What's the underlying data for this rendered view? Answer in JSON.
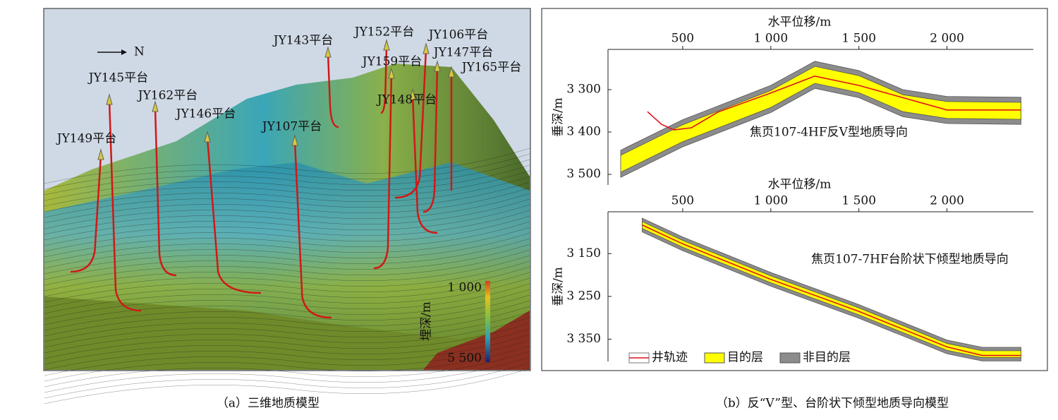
{
  "panel_a": {
    "caption": "（a）三维地质模型",
    "north": "N",
    "platforms": [
      "JY143平台",
      "JY152平台",
      "JY106平台",
      "JY147平台",
      "JY159平台",
      "JY165平台",
      "JY145平台",
      "JY162平台",
      "JY146平台",
      "JY148平台",
      "JY107平台",
      "JY149平台"
    ],
    "colorbar": {
      "label": "埋深/m",
      "ticks": [
        {
          "value": 1000,
          "label": "1 000"
        },
        {
          "value": 5500,
          "label": "5 500"
        }
      ]
    }
  },
  "panel_b": {
    "caption": "（b）反“V”型、台阶状下倾型地质导向模型"
  },
  "chart_data": [
    {
      "type": "line",
      "xlabel": "水平位移/m",
      "ylabel": "垂深/m",
      "annotation": "焦页107-4HF反V型地质导向",
      "xlim": [
        76,
        2490
      ],
      "xticks": [
        500,
        {
          "value": 1000,
          "label": "1 000"
        },
        {
          "value": 1500,
          "label": "1 500"
        },
        {
          "value": 2000,
          "label": "2 000"
        }
      ],
      "ylim": [
        3205,
        3525
      ],
      "y_inverted": true,
      "yticks": [
        {
          "value": 3300,
          "label": "3 300"
        },
        {
          "value": 3400,
          "label": "3 400"
        },
        {
          "value": 3500,
          "label": "3 500"
        }
      ],
      "bands": [
        {
          "color": "#8c8c8c",
          "x": [
            148,
            500,
            1000,
            1250,
            1500,
            1750,
            2000,
            2420
          ],
          "top": [
            3443,
            3371,
            3290,
            3233,
            3255,
            3300,
            3316,
            3318
          ],
          "bottom": [
            3507,
            3435,
            3354,
            3297,
            3319,
            3364,
            3380,
            3382
          ]
        },
        {
          "color": "#ffff00",
          "x": [
            148,
            500,
            1000,
            1250,
            1500,
            1750,
            2000,
            2420
          ],
          "top": [
            3455,
            3383,
            3302,
            3245,
            3267,
            3312,
            3328,
            3330
          ],
          "bottom": [
            3495,
            3423,
            3342,
            3285,
            3307,
            3352,
            3368,
            3370
          ]
        }
      ],
      "well": {
        "color": "#e0141e",
        "x": [
          300,
          380,
          450,
          550,
          700,
          1000,
          1250,
          1500,
          2000,
          2420
        ],
        "values": [
          3352,
          3382,
          3395,
          3390,
          3353,
          3308,
          3268,
          3290,
          3348,
          3348
        ]
      }
    },
    {
      "type": "line",
      "xlabel": "水平位移/m",
      "ylabel": "垂深/m",
      "annotation": "焦页107-7HF台阶状下倾型地质导向",
      "xlim": [
        76,
        2490
      ],
      "xticks": [
        500,
        {
          "value": 1000,
          "label": "1 000"
        },
        {
          "value": 1500,
          "label": "1 500"
        },
        {
          "value": 2000,
          "label": "2 000"
        }
      ],
      "ylim": [
        3052,
        3402
      ],
      "y_inverted": true,
      "yticks": [
        {
          "value": 3150,
          "label": "3 150"
        },
        {
          "value": 3250,
          "label": "3 250"
        },
        {
          "value": 3350,
          "label": "3 350"
        }
      ],
      "bands": [
        {
          "name": "非目的层",
          "color": "#8c8c8c",
          "x": [
            270,
            500,
            1000,
            1500,
            2000,
            2200,
            2420
          ],
          "top": [
            3067,
            3111,
            3194,
            3269,
            3352,
            3369,
            3369
          ],
          "bottom": [
            3099,
            3143,
            3226,
            3301,
            3384,
            3401,
            3401
          ]
        },
        {
          "name": "目的层",
          "color": "#ffff00",
          "x": [
            270,
            500,
            1000,
            1500,
            2000,
            2200,
            2420
          ],
          "top": [
            3075,
            3119,
            3202,
            3277,
            3360,
            3377,
            3377
          ],
          "bottom": [
            3091,
            3135,
            3218,
            3293,
            3376,
            3393,
            3393
          ]
        }
      ],
      "well": {
        "name": "井轨迹",
        "color": "#e0141e",
        "x": [
          270,
          500,
          1000,
          1500,
          2000,
          2200,
          2420
        ],
        "values": [
          3083,
          3127,
          3210,
          3285,
          3368,
          3388,
          3388
        ]
      }
    }
  ]
}
